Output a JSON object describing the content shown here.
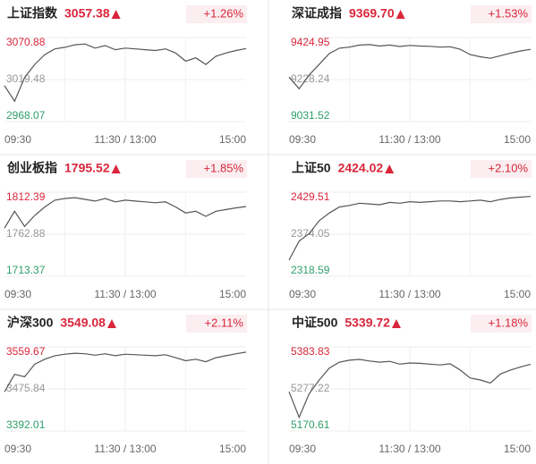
{
  "chart_data": [
    {
      "type": "line",
      "title": "上证指数",
      "price": "3057.38",
      "change": "+1.26%",
      "categories": [
        "09:30",
        null,
        null,
        null,
        null,
        null,
        null,
        null,
        null,
        null,
        null,
        null,
        "11:30 / 13:00",
        null,
        null,
        null,
        null,
        null,
        null,
        null,
        null,
        null,
        null,
        null,
        "15:00"
      ],
      "values": [
        3012,
        2993,
        3022,
        3038,
        3050,
        3057,
        3059,
        3062,
        3063,
        3058,
        3061,
        3056,
        3058,
        3057,
        3056,
        3055,
        3057,
        3052,
        3042,
        3046,
        3038,
        3048,
        3052,
        3055,
        3057.38
      ],
      "ylim": [
        2968.07,
        3070.88
      ],
      "yticks": [
        2968.07,
        3019.48,
        3070.88
      ]
    },
    {
      "type": "line",
      "title": "深证成指",
      "price": "9369.70",
      "change": "+1.53%",
      "categories": [
        "09:30",
        null,
        null,
        null,
        null,
        null,
        null,
        null,
        null,
        null,
        null,
        null,
        "11:30 / 13:00",
        null,
        null,
        null,
        null,
        null,
        null,
        null,
        null,
        null,
        null,
        null,
        "15:00"
      ],
      "values": [
        9240,
        9185,
        9250,
        9300,
        9350,
        9375,
        9380,
        9390,
        9392,
        9385,
        9390,
        9383,
        9388,
        9385,
        9384,
        9380,
        9382,
        9370,
        9345,
        9335,
        9328,
        9340,
        9352,
        9362,
        9369.7
      ],
      "ylim": [
        9031.52,
        9424.95
      ],
      "yticks": [
        9031.52,
        9228.24,
        9424.95
      ]
    },
    {
      "type": "line",
      "title": "创业板指",
      "price": "1795.52",
      "change": "+1.85%",
      "categories": [
        "09:30",
        null,
        null,
        null,
        null,
        null,
        null,
        null,
        null,
        null,
        null,
        null,
        "11:30 / 13:00",
        null,
        null,
        null,
        null,
        null,
        null,
        null,
        null,
        null,
        null,
        null,
        "15:00"
      ],
      "values": [
        1770,
        1790,
        1772,
        1785,
        1795,
        1803,
        1805,
        1806,
        1804,
        1802,
        1805,
        1801,
        1803,
        1802,
        1801,
        1800,
        1801,
        1795,
        1788,
        1790,
        1784,
        1790,
        1792,
        1794,
        1795.52
      ],
      "ylim": [
        1713.37,
        1812.39
      ],
      "yticks": [
        1713.37,
        1762.88,
        1812.39
      ]
    },
    {
      "type": "line",
      "title": "上证50",
      "price": "2424.02",
      "change": "+2.10%",
      "categories": [
        "09:30",
        null,
        null,
        null,
        null,
        null,
        null,
        null,
        null,
        null,
        null,
        null,
        "11:30 / 13:00",
        null,
        null,
        null,
        null,
        null,
        null,
        null,
        null,
        null,
        null,
        null,
        "15:00"
      ],
      "values": [
        2340,
        2365,
        2375,
        2392,
        2402,
        2410,
        2412,
        2415,
        2414,
        2413,
        2416,
        2415,
        2417,
        2416,
        2417,
        2418,
        2418,
        2417,
        2418,
        2419,
        2417,
        2420,
        2422,
        2423,
        2424.02
      ],
      "ylim": [
        2318.59,
        2429.51
      ],
      "yticks": [
        2318.59,
        2374.05,
        2429.51
      ]
    },
    {
      "type": "line",
      "title": "沪深300",
      "price": "3549.08",
      "change": "+2.11%",
      "categories": [
        "09:30",
        null,
        null,
        null,
        null,
        null,
        null,
        null,
        null,
        null,
        null,
        null,
        "11:30 / 13:00",
        null,
        null,
        null,
        null,
        null,
        null,
        null,
        null,
        null,
        null,
        null,
        "15:00"
      ],
      "values": [
        3470,
        3505,
        3500,
        3525,
        3535,
        3542,
        3545,
        3547,
        3546,
        3543,
        3546,
        3542,
        3545,
        3544,
        3543,
        3542,
        3544,
        3538,
        3532,
        3535,
        3530,
        3538,
        3542,
        3546,
        3549.08
      ],
      "ylim": [
        3392.01,
        3559.67
      ],
      "yticks": [
        3392.01,
        3475.84,
        3559.67
      ]
    },
    {
      "type": "line",
      "title": "中证500",
      "price": "5339.72",
      "change": "+1.18%",
      "categories": [
        "09:30",
        null,
        null,
        null,
        null,
        null,
        null,
        null,
        null,
        null,
        null,
        null,
        "11:30 / 13:00",
        null,
        null,
        null,
        null,
        null,
        null,
        null,
        null,
        null,
        null,
        null,
        "15:00"
      ],
      "values": [
        5270,
        5205,
        5265,
        5300,
        5330,
        5345,
        5350,
        5352,
        5348,
        5345,
        5347,
        5340,
        5343,
        5342,
        5340,
        5338,
        5341,
        5325,
        5305,
        5300,
        5292,
        5315,
        5325,
        5333,
        5339.72
      ],
      "ylim": [
        5170.61,
        5383.83
      ],
      "yticks": [
        5170.61,
        5277.22,
        5383.83
      ]
    }
  ]
}
